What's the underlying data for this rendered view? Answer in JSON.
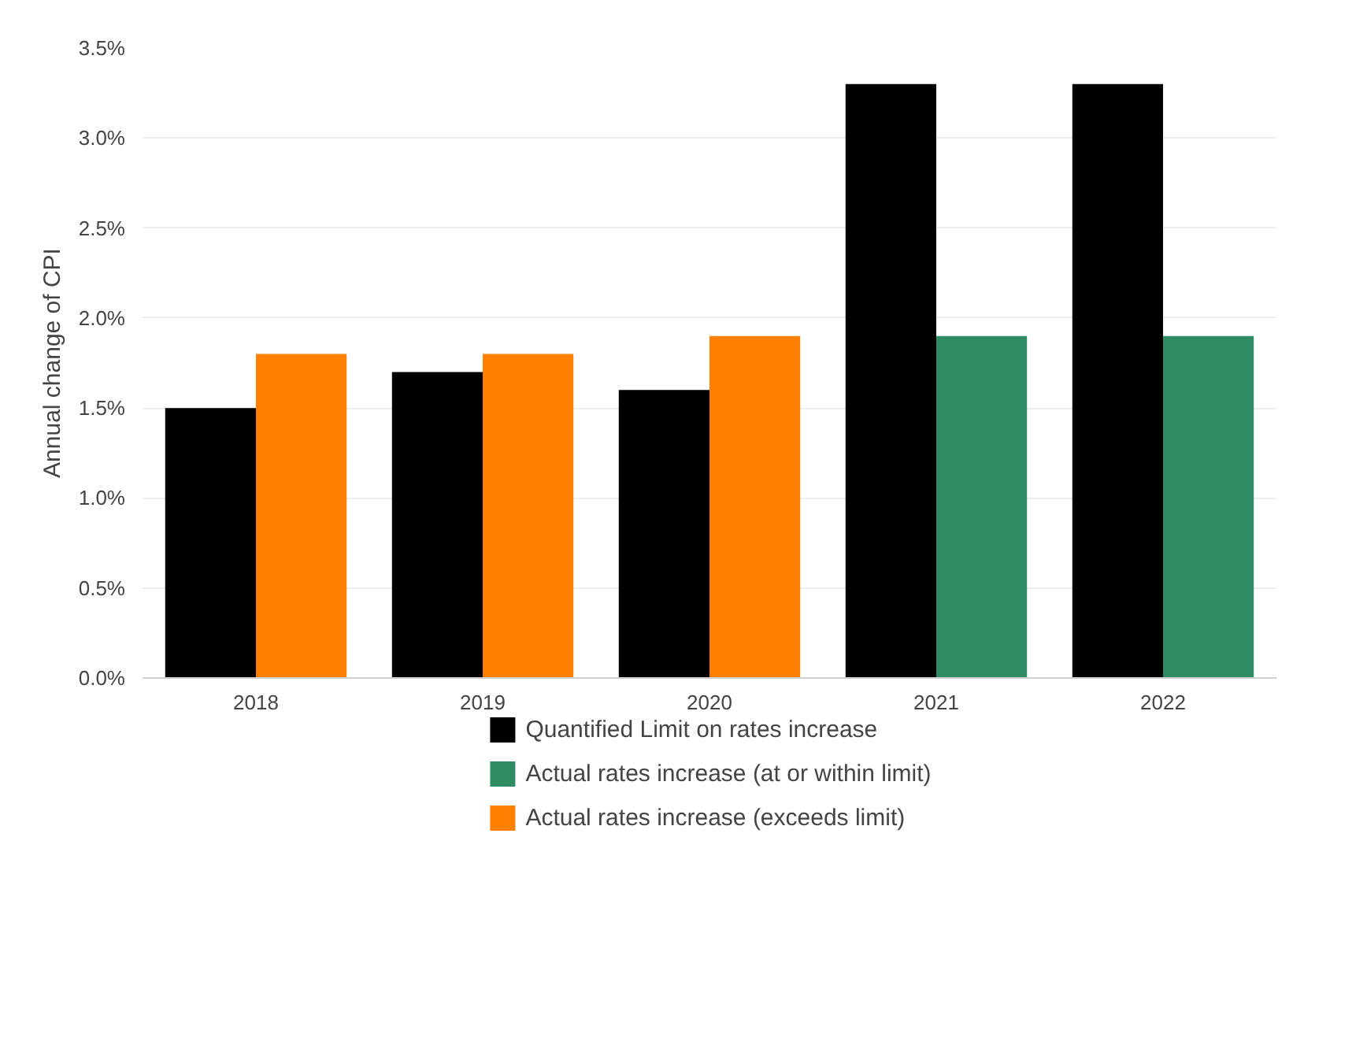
{
  "chart_data": {
    "type": "bar",
    "ylabel": "Annual change of CPI",
    "categories": [
      "2018",
      "2019",
      "2020",
      "2021",
      "2022"
    ],
    "series": [
      {
        "name": "Quantified Limit on rates increase",
        "color": "#000000",
        "values": [
          1.5,
          1.7,
          1.6,
          3.3,
          3.3
        ]
      },
      {
        "name": "Actual rates increase (at or within limit)",
        "color": "#2e8b63",
        "values": [
          null,
          null,
          null,
          1.9,
          1.9
        ]
      },
      {
        "name": "Actual rates increase (exceeds limit)",
        "color": "#ff8000",
        "values": [
          1.8,
          1.8,
          1.9,
          null,
          null
        ]
      }
    ],
    "ylim": [
      0,
      3.5
    ],
    "yticks": [
      {
        "value": 0,
        "label": "0.0%"
      },
      {
        "value": 0.5,
        "label": "0.5%"
      },
      {
        "value": 1.0,
        "label": "1.0%"
      },
      {
        "value": 1.5,
        "label": "1.5%"
      },
      {
        "value": 2.0,
        "label": "2.0%"
      },
      {
        "value": 2.5,
        "label": "2.5%"
      },
      {
        "value": 3.0,
        "label": "3.0%"
      },
      {
        "value": 3.5,
        "label": "3.5%"
      }
    ],
    "grid": "y",
    "legend": "bottom"
  }
}
